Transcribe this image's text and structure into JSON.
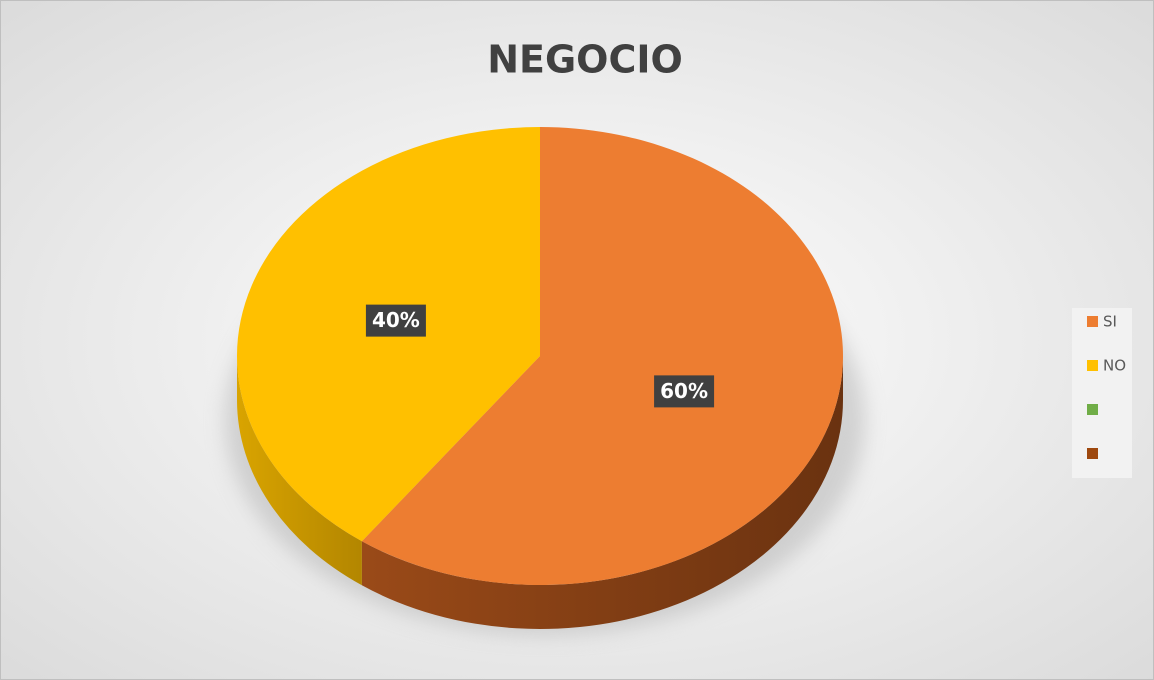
{
  "chart_data": {
    "type": "pie",
    "title": "NEGOCIO",
    "categories": [
      "SI",
      "NO",
      null,
      null
    ],
    "values": [
      60,
      40,
      null,
      null
    ],
    "value_labels": [
      "60%",
      "40%",
      null,
      null
    ],
    "colors": [
      "#ed7d31",
      "#ffc000",
      "#70ad47",
      "#9e480e"
    ],
    "legend": "right"
  }
}
